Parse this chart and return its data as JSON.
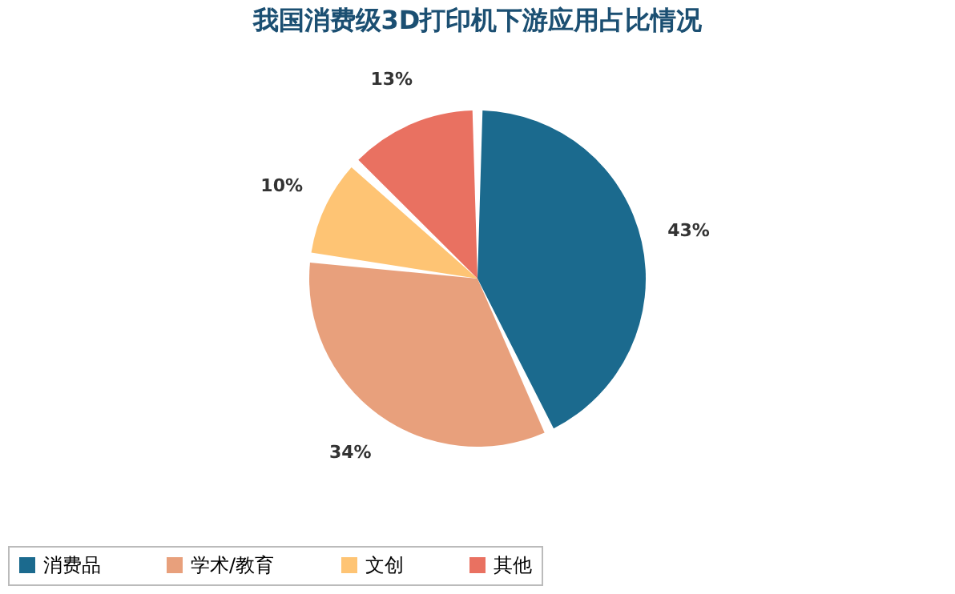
{
  "chart_data": {
    "type": "pie",
    "title": "我国消费级3D打印机下游应用占比情况",
    "categories": [
      "消费品",
      "学术/教育",
      "文创",
      "其他"
    ],
    "values": [
      43,
      34,
      10,
      13
    ],
    "colors": [
      "#1b6a8e",
      "#e8a07c",
      "#fec474",
      "#e97161"
    ],
    "value_labels": [
      "43%",
      "34%",
      "10%",
      "13%"
    ],
    "legend": "bottom"
  }
}
